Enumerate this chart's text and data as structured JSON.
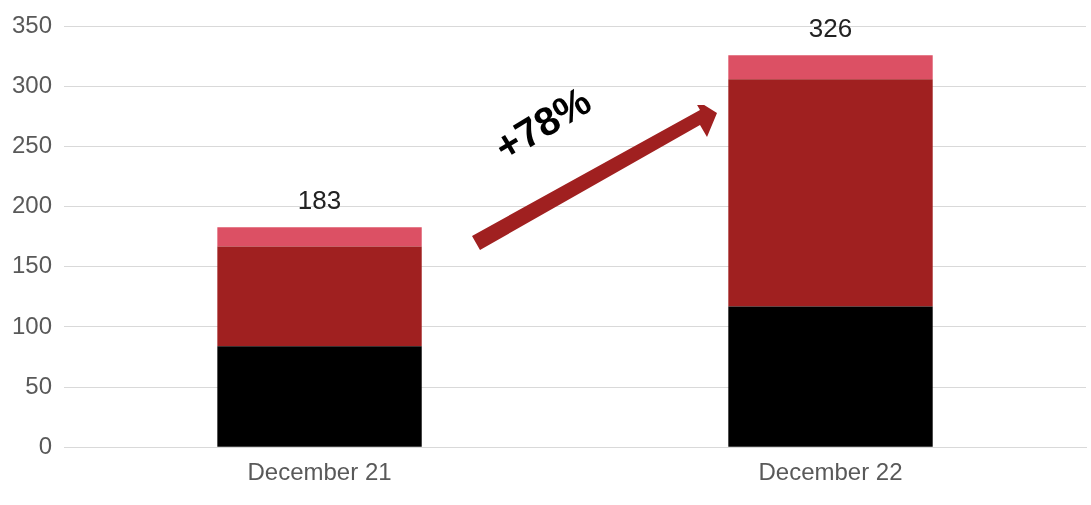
{
  "chart_data": {
    "type": "bar",
    "stacked": true,
    "categories": [
      "December 21",
      "December 22"
    ],
    "series": [
      {
        "color": "#000000",
        "values": [
          84,
          117
        ]
      },
      {
        "color": "#a02020",
        "values": [
          83,
          189
        ]
      },
      {
        "color": "#dc5064",
        "values": [
          16,
          20
        ]
      }
    ],
    "ylim": [
      0,
      350
    ],
    "yticks": [
      0,
      50,
      100,
      150,
      200,
      250,
      300,
      350
    ],
    "grid": "y",
    "legend": false,
    "totals": [
      "183",
      "326"
    ],
    "annotations": [
      "+78%"
    ]
  }
}
